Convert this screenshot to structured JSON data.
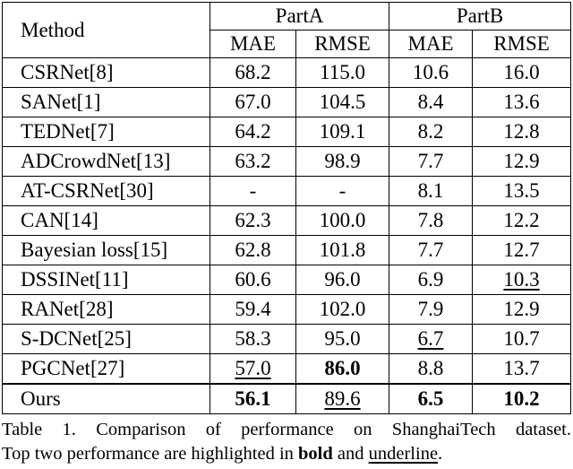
{
  "table": {
    "header": {
      "method": "Method",
      "groups": [
        "PartA",
        "PartB"
      ],
      "metrics": [
        "MAE",
        "RMSE",
        "MAE",
        "RMSE"
      ]
    },
    "rows": [
      {
        "method": "CSRNet[8]",
        "cells": [
          {
            "v": "68.2",
            "s": ""
          },
          {
            "v": "115.0",
            "s": ""
          },
          {
            "v": "10.6",
            "s": ""
          },
          {
            "v": "16.0",
            "s": ""
          }
        ]
      },
      {
        "method": "SANet[1]",
        "cells": [
          {
            "v": "67.0",
            "s": ""
          },
          {
            "v": "104.5",
            "s": ""
          },
          {
            "v": "8.4",
            "s": ""
          },
          {
            "v": "13.6",
            "s": ""
          }
        ]
      },
      {
        "method": "TEDNet[7]",
        "cells": [
          {
            "v": "64.2",
            "s": ""
          },
          {
            "v": "109.1",
            "s": ""
          },
          {
            "v": "8.2",
            "s": ""
          },
          {
            "v": "12.8",
            "s": ""
          }
        ]
      },
      {
        "method": "ADCrowdNet[13]",
        "cells": [
          {
            "v": "63.2",
            "s": ""
          },
          {
            "v": "98.9",
            "s": ""
          },
          {
            "v": "7.7",
            "s": ""
          },
          {
            "v": "12.9",
            "s": ""
          }
        ]
      },
      {
        "method": "AT-CSRNet[30]",
        "cells": [
          {
            "v": "-",
            "s": ""
          },
          {
            "v": "-",
            "s": ""
          },
          {
            "v": "8.1",
            "s": ""
          },
          {
            "v": "13.5",
            "s": ""
          }
        ]
      },
      {
        "method": "CAN[14]",
        "cells": [
          {
            "v": "62.3",
            "s": ""
          },
          {
            "v": "100.0",
            "s": ""
          },
          {
            "v": "7.8",
            "s": ""
          },
          {
            "v": "12.2",
            "s": ""
          }
        ]
      },
      {
        "method": "Bayesian loss[15]",
        "cells": [
          {
            "v": "62.8",
            "s": ""
          },
          {
            "v": "101.8",
            "s": ""
          },
          {
            "v": "7.7",
            "s": ""
          },
          {
            "v": "12.7",
            "s": ""
          }
        ]
      },
      {
        "method": "DSSINet[11]",
        "cells": [
          {
            "v": "60.6",
            "s": ""
          },
          {
            "v": "96.0",
            "s": ""
          },
          {
            "v": "6.9",
            "s": ""
          },
          {
            "v": "10.3",
            "s": "underline"
          }
        ]
      },
      {
        "method": "RANet[28]",
        "cells": [
          {
            "v": "59.4",
            "s": ""
          },
          {
            "v": "102.0",
            "s": ""
          },
          {
            "v": "7.9",
            "s": ""
          },
          {
            "v": "12.9",
            "s": ""
          }
        ]
      },
      {
        "method": "S-DCNet[25]",
        "cells": [
          {
            "v": "58.3",
            "s": ""
          },
          {
            "v": "95.0",
            "s": ""
          },
          {
            "v": "6.7",
            "s": "underline"
          },
          {
            "v": "10.7",
            "s": ""
          }
        ]
      },
      {
        "method": "PGCNet[27]",
        "cells": [
          {
            "v": "57.0",
            "s": "underline"
          },
          {
            "v": "86.0",
            "s": "bold"
          },
          {
            "v": "8.8",
            "s": ""
          },
          {
            "v": "13.7",
            "s": ""
          }
        ]
      },
      {
        "method": "Ours",
        "method_style": "bold",
        "cells": [
          {
            "v": "56.1",
            "s": "bold"
          },
          {
            "v": "89.6",
            "s": "underline"
          },
          {
            "v": "6.5",
            "s": "bold"
          },
          {
            "v": "10.2",
            "s": "bold"
          }
        ]
      }
    ]
  },
  "caption": {
    "line1": "Table 1. Comparison of performance on ShanghaiTech dataset.",
    "line2_prefix": "Top two performance are highlighted in ",
    "bold_word": "bold",
    "and": " and ",
    "underline_word": "underline",
    "end": "."
  }
}
